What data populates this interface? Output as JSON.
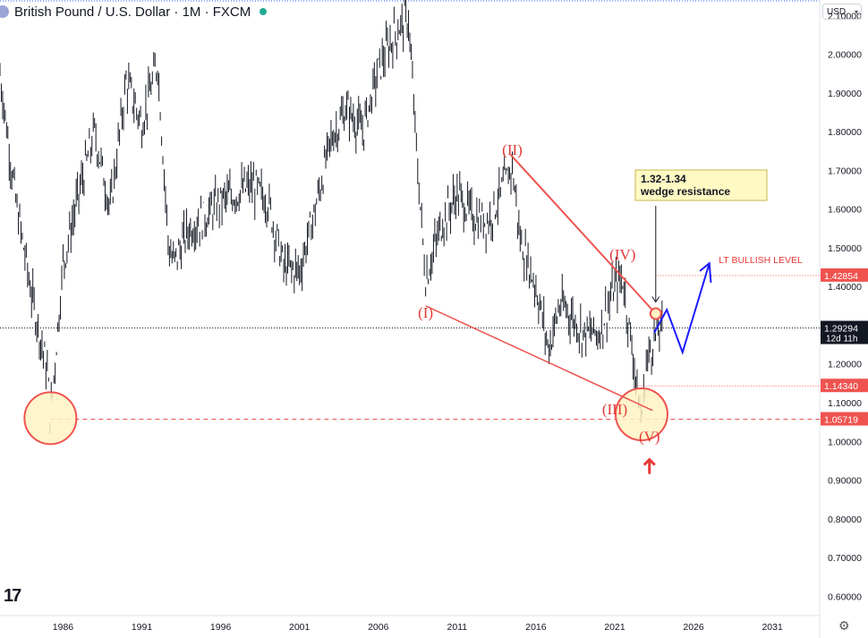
{
  "header": {
    "symbol_title": "British Pound / U.S. Dollar · 1M · FXCM",
    "currency": "USD"
  },
  "logo": "17",
  "chart_data": {
    "type": "line",
    "title": "British Pound / U.S. Dollar · 1M · FXCM",
    "x": [
      1982,
      1983,
      1984,
      1985,
      1985.2,
      1986,
      1987,
      1988,
      1989,
      1990,
      1991,
      1992,
      1992.7,
      1993,
      1994,
      1995,
      1996,
      1997,
      1998,
      1999,
      2000,
      2001,
      2002,
      2003,
      2004,
      2005,
      2006,
      2007,
      2007.9,
      2008.5,
      2009,
      2010,
      2011,
      2012,
      2013,
      2014.5,
      2015,
      2016,
      2016.8,
      2017.5,
      2018,
      2019,
      2020,
      2021,
      2021.5,
      2022,
      2022.7,
      2023,
      2023.5,
      2024
    ],
    "y": [
      1.95,
      1.62,
      1.38,
      1.18,
      1.06,
      1.46,
      1.64,
      1.8,
      1.6,
      1.93,
      1.82,
      1.98,
      1.5,
      1.46,
      1.55,
      1.58,
      1.62,
      1.64,
      1.66,
      1.62,
      1.45,
      1.44,
      1.6,
      1.78,
      1.86,
      1.8,
      1.96,
      2.05,
      2.1,
      1.7,
      1.42,
      1.56,
      1.64,
      1.58,
      1.57,
      1.71,
      1.52,
      1.4,
      1.24,
      1.35,
      1.34,
      1.28,
      1.28,
      1.4,
      1.42,
      1.27,
      1.05,
      1.2,
      1.27,
      1.29
    ],
    "xlim": [
      1982,
      2034
    ],
    "ylim": [
      0.55,
      2.14
    ],
    "x_ticks": [
      "1986",
      "1991",
      "1996",
      "2001",
      "2006",
      "2011",
      "2016",
      "2021",
      "2026",
      "2031"
    ],
    "y_ticks": [
      "2.10000",
      "2.00000",
      "1.90000",
      "1.80000",
      "1.70000",
      "1.60000",
      "1.50000",
      "1.40000",
      "1.20000",
      "1.10000",
      "1.00000",
      "0.90000",
      "0.80000",
      "0.70000",
      "0.60000"
    ],
    "price_labels": [
      {
        "value": 1.42854,
        "text": "1.42854",
        "color": "#ef5350"
      },
      {
        "value": 1.29294,
        "text": "1.29294",
        "sub": "12d 11h",
        "color": "#131722"
      },
      {
        "value": 1.1434,
        "text": "1.14340",
        "color": "#ef5350"
      },
      {
        "value": 1.05719,
        "text": "1.05719",
        "color": "#ef5350"
      }
    ],
    "wave_labels": [
      {
        "text": "(I)",
        "x": 2009,
        "y": 1.32
      },
      {
        "text": "(II)",
        "x": 2014.5,
        "y": 1.74
      },
      {
        "text": "(III)",
        "x": 2021,
        "y": 1.07
      },
      {
        "text": "(IV)",
        "x": 2021.5,
        "y": 1.47
      },
      {
        "text": "(V)",
        "x": 2023.2,
        "y": 1.0
      }
    ],
    "annotation_box": "1.32-1.34\nwedge resistance",
    "level_label": "LT BULLISH LEVEL",
    "colors": {
      "wedge": "#ef5350",
      "projection": "#1a1aff",
      "circle_fill": "#fff3c4",
      "grid": "#f0f3fa"
    }
  }
}
